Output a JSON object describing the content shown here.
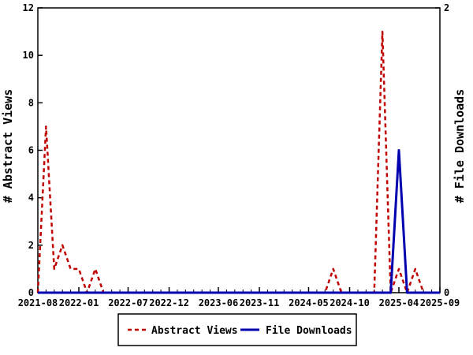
{
  "chart_data": {
    "type": "line",
    "title": "",
    "background": "#ffffff",
    "axis_color": "#000000",
    "text_color": "#000000",
    "grid": false,
    "x": [
      "2021-08",
      "2021-09",
      "2021-10",
      "2021-11",
      "2021-12",
      "2022-01",
      "2022-02",
      "2022-03",
      "2022-04",
      "2022-05",
      "2022-06",
      "2022-07",
      "2022-08",
      "2022-09",
      "2022-10",
      "2022-11",
      "2022-12",
      "2023-01",
      "2023-02",
      "2023-03",
      "2023-04",
      "2023-05",
      "2023-06",
      "2023-07",
      "2023-08",
      "2023-09",
      "2023-10",
      "2023-11",
      "2023-12",
      "2024-01",
      "2024-02",
      "2024-03",
      "2024-04",
      "2024-05",
      "2024-06",
      "2024-07",
      "2024-08",
      "2024-09",
      "2024-10",
      "2024-11",
      "2024-12",
      "2025-01",
      "2025-02",
      "2025-03",
      "2025-04",
      "2025-05",
      "2025-06",
      "2025-07",
      "2025-08",
      "2025-09"
    ],
    "x_tick_labels": [
      "2021-08",
      "2022-01",
      "2022-07",
      "2022-12",
      "2023-06",
      "2023-11",
      "2024-05",
      "2024-10",
      "2025-04",
      "2025-09"
    ],
    "x_tick_indices": [
      0,
      5,
      11,
      16,
      22,
      27,
      33,
      38,
      44,
      49
    ],
    "series": [
      {
        "name": "Abstract Views",
        "axis": "left",
        "color": "#c00000",
        "line_style": "dashed",
        "values": [
          0,
          7,
          1,
          2,
          1,
          1,
          0,
          1,
          0,
          0,
          0,
          0,
          0,
          0,
          0,
          0,
          0,
          0,
          0,
          0,
          0,
          0,
          0,
          0,
          0,
          0,
          0,
          0,
          0,
          0,
          0,
          0,
          0,
          0,
          0,
          0,
          1,
          0,
          0,
          0,
          0,
          0,
          11,
          0,
          1,
          0,
          1,
          0,
          0,
          0
        ]
      },
      {
        "name": "File Downloads",
        "axis": "right",
        "color": "#0000b0",
        "line_style": "solid",
        "values": [
          0,
          0,
          0,
          0,
          0,
          0,
          0,
          0,
          0,
          0,
          0,
          0,
          0,
          0,
          0,
          0,
          0,
          0,
          0,
          0,
          0,
          0,
          0,
          0,
          0,
          0,
          0,
          0,
          0,
          0,
          0,
          0,
          0,
          0,
          0,
          0,
          0,
          0,
          0,
          0,
          0,
          0,
          0,
          0,
          1,
          0,
          0,
          0,
          0,
          0
        ]
      }
    ],
    "left_axis": {
      "label": "# Abstract Views",
      "min": 0,
      "max": 12,
      "ticks": [
        0,
        2,
        4,
        6,
        8,
        10,
        12
      ]
    },
    "right_axis": {
      "label": "# File Downloads",
      "min": 0,
      "max": 2,
      "ticks": [
        0,
        2
      ]
    },
    "legend": {
      "position": "bottom-center"
    }
  }
}
